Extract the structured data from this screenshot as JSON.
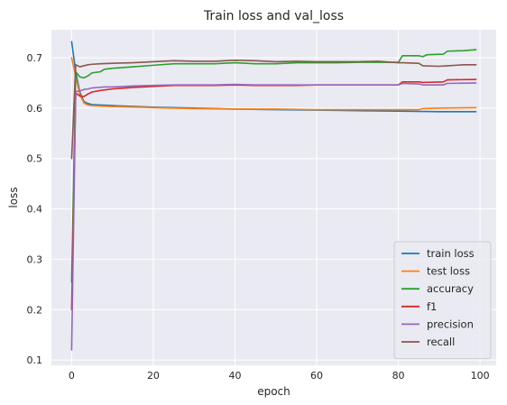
{
  "chart_data": {
    "type": "line",
    "title": "Train loss and val_loss",
    "xlabel": "epoch",
    "ylabel": "loss",
    "xlim": [
      -4.95,
      103.95
    ],
    "ylim": [
      0.0895,
      0.7555
    ],
    "xticks": [
      0,
      20,
      40,
      60,
      80,
      100
    ],
    "yticks": [
      0.1,
      0.2,
      0.3,
      0.4,
      0.5,
      0.6,
      0.7
    ],
    "ytick_labels": [
      "0.1",
      "0.2",
      "0.3",
      "0.4",
      "0.5",
      "0.6",
      "0.7"
    ],
    "grid": true,
    "legend_position": "lower-right",
    "series": [
      {
        "name": "train loss",
        "color": "#1f77b4",
        "points": [
          [
            0,
            0.732
          ],
          [
            1,
            0.672
          ],
          [
            2,
            0.632
          ],
          [
            3,
            0.613
          ],
          [
            4,
            0.609
          ],
          [
            5,
            0.607
          ],
          [
            10,
            0.605
          ],
          [
            20,
            0.602
          ],
          [
            30,
            0.6
          ],
          [
            40,
            0.598
          ],
          [
            50,
            0.597
          ],
          [
            60,
            0.596
          ],
          [
            70,
            0.595
          ],
          [
            80,
            0.594
          ],
          [
            90,
            0.593
          ],
          [
            99,
            0.593
          ]
        ]
      },
      {
        "name": "test loss",
        "color": "#ff7f0e",
        "points": [
          [
            0,
            0.7
          ],
          [
            1,
            0.662
          ],
          [
            2,
            0.627
          ],
          [
            3,
            0.61
          ],
          [
            4,
            0.606
          ],
          [
            5,
            0.605
          ],
          [
            10,
            0.603
          ],
          [
            20,
            0.601
          ],
          [
            30,
            0.599
          ],
          [
            40,
            0.598
          ],
          [
            50,
            0.598
          ],
          [
            60,
            0.597
          ],
          [
            70,
            0.597
          ],
          [
            80,
            0.597
          ],
          [
            85,
            0.597
          ],
          [
            86,
            0.599
          ],
          [
            90,
            0.6
          ],
          [
            99,
            0.601
          ]
        ]
      },
      {
        "name": "accuracy",
        "color": "#2ca02c",
        "points": [
          [
            0,
            0.255
          ],
          [
            1,
            0.672
          ],
          [
            2,
            0.662
          ],
          [
            3,
            0.66
          ],
          [
            4,
            0.664
          ],
          [
            5,
            0.67
          ],
          [
            7,
            0.672
          ],
          [
            8,
            0.677
          ],
          [
            10,
            0.679
          ],
          [
            15,
            0.682
          ],
          [
            20,
            0.685
          ],
          [
            25,
            0.688
          ],
          [
            30,
            0.688
          ],
          [
            35,
            0.688
          ],
          [
            40,
            0.69
          ],
          [
            45,
            0.688
          ],
          [
            50,
            0.688
          ],
          [
            55,
            0.69
          ],
          [
            60,
            0.69
          ],
          [
            65,
            0.69
          ],
          [
            70,
            0.691
          ],
          [
            75,
            0.691
          ],
          [
            80,
            0.691
          ],
          [
            81,
            0.704
          ],
          [
            85,
            0.704
          ],
          [
            86,
            0.702
          ],
          [
            87,
            0.706
          ],
          [
            91,
            0.707
          ],
          [
            92,
            0.713
          ],
          [
            96,
            0.714
          ],
          [
            99,
            0.716
          ]
        ]
      },
      {
        "name": "f1",
        "color": "#d62728",
        "points": [
          [
            0,
            0.2
          ],
          [
            1,
            0.63
          ],
          [
            2,
            0.624
          ],
          [
            3,
            0.623
          ],
          [
            4,
            0.628
          ],
          [
            5,
            0.632
          ],
          [
            7,
            0.635
          ],
          [
            10,
            0.638
          ],
          [
            15,
            0.641
          ],
          [
            20,
            0.643
          ],
          [
            25,
            0.645
          ],
          [
            30,
            0.645
          ],
          [
            35,
            0.645
          ],
          [
            40,
            0.646
          ],
          [
            45,
            0.645
          ],
          [
            50,
            0.645
          ],
          [
            55,
            0.645
          ],
          [
            60,
            0.646
          ],
          [
            65,
            0.646
          ],
          [
            70,
            0.646
          ],
          [
            75,
            0.646
          ],
          [
            80,
            0.646
          ],
          [
            81,
            0.652
          ],
          [
            85,
            0.652
          ],
          [
            86,
            0.651
          ],
          [
            91,
            0.652
          ],
          [
            92,
            0.656
          ],
          [
            99,
            0.657
          ]
        ]
      },
      {
        "name": "precision",
        "color": "#9467bd",
        "points": [
          [
            0,
            0.12
          ],
          [
            1,
            0.633
          ],
          [
            2,
            0.634
          ],
          [
            3,
            0.637
          ],
          [
            4,
            0.638
          ],
          [
            5,
            0.64
          ],
          [
            8,
            0.642
          ],
          [
            10,
            0.642
          ],
          [
            15,
            0.644
          ],
          [
            20,
            0.645
          ],
          [
            25,
            0.646
          ],
          [
            30,
            0.646
          ],
          [
            35,
            0.646
          ],
          [
            40,
            0.647
          ],
          [
            45,
            0.646
          ],
          [
            50,
            0.646
          ],
          [
            55,
            0.646
          ],
          [
            60,
            0.646
          ],
          [
            65,
            0.646
          ],
          [
            70,
            0.646
          ],
          [
            75,
            0.646
          ],
          [
            80,
            0.646
          ],
          [
            81,
            0.649
          ],
          [
            85,
            0.648
          ],
          [
            86,
            0.646
          ],
          [
            91,
            0.646
          ],
          [
            92,
            0.649
          ],
          [
            99,
            0.65
          ]
        ]
      },
      {
        "name": "recall",
        "color": "#8c564b",
        "points": [
          [
            0,
            0.5
          ],
          [
            1,
            0.686
          ],
          [
            2,
            0.682
          ],
          [
            3,
            0.684
          ],
          [
            4,
            0.686
          ],
          [
            5,
            0.687
          ],
          [
            7,
            0.688
          ],
          [
            10,
            0.689
          ],
          [
            15,
            0.69
          ],
          [
            20,
            0.692
          ],
          [
            25,
            0.694
          ],
          [
            30,
            0.693
          ],
          [
            35,
            0.693
          ],
          [
            40,
            0.695
          ],
          [
            45,
            0.694
          ],
          [
            50,
            0.692
          ],
          [
            55,
            0.693
          ],
          [
            60,
            0.692
          ],
          [
            65,
            0.692
          ],
          [
            70,
            0.692
          ],
          [
            75,
            0.693
          ],
          [
            80,
            0.69
          ],
          [
            81,
            0.69
          ],
          [
            85,
            0.689
          ],
          [
            86,
            0.684
          ],
          [
            90,
            0.683
          ],
          [
            92,
            0.684
          ],
          [
            96,
            0.686
          ],
          [
            99,
            0.686
          ]
        ]
      }
    ]
  }
}
